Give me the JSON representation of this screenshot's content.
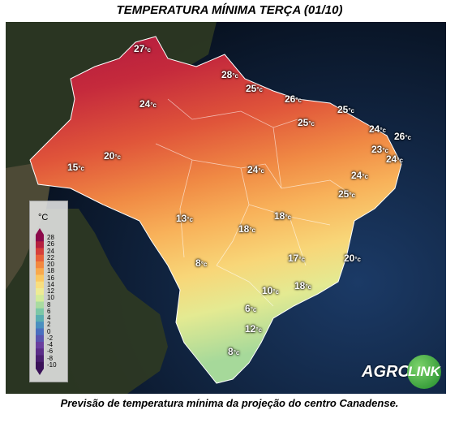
{
  "title": "TEMPERATURA MÍNIMA TERÇA (01/10)",
  "caption": "Previsão de temperatura mínima da projeção do centro Canadense.",
  "legend": {
    "unit": "°C",
    "ticks": [
      "28",
      "26",
      "24",
      "22",
      "20",
      "18",
      "16",
      "14",
      "12",
      "10",
      "8",
      "6",
      "4",
      "2",
      "0",
      "-2",
      "-4",
      "-6",
      "-8",
      "-10"
    ],
    "colors": [
      "#8b0a4a",
      "#b5213f",
      "#d6403a",
      "#e86239",
      "#f2883f",
      "#f8a94d",
      "#fac862",
      "#f8de7e",
      "#eeeb94",
      "#d2eb9a",
      "#a9dba0",
      "#7cc7a6",
      "#5aaeb2",
      "#4a8fbf",
      "#4a6fbf",
      "#5a55b0",
      "#6a3f9e",
      "#5b2d88",
      "#4a1f70",
      "#3a1258"
    ]
  },
  "labels": [
    {
      "value": "27",
      "unit": "°c"
    },
    {
      "value": "28",
      "unit": "°c"
    },
    {
      "value": "25",
      "unit": "°c"
    },
    {
      "value": "26",
      "unit": "°c"
    },
    {
      "value": "24",
      "unit": "°c"
    },
    {
      "value": "25",
      "unit": "°c"
    },
    {
      "value": "25",
      "unit": "°c"
    },
    {
      "value": "24",
      "unit": "°c"
    },
    {
      "value": "26",
      "unit": "°c"
    },
    {
      "value": "23",
      "unit": "°c"
    },
    {
      "value": "24",
      "unit": "°c"
    },
    {
      "value": "20",
      "unit": "°c"
    },
    {
      "value": "15",
      "unit": "°c"
    },
    {
      "value": "24",
      "unit": "°c"
    },
    {
      "value": "24",
      "unit": "°c"
    },
    {
      "value": "25",
      "unit": "°c"
    },
    {
      "value": "13",
      "unit": "°c"
    },
    {
      "value": "18",
      "unit": "°c"
    },
    {
      "value": "18",
      "unit": "°c"
    },
    {
      "value": "8",
      "unit": "°c"
    },
    {
      "value": "17",
      "unit": "°c"
    },
    {
      "value": "20",
      "unit": "°c"
    },
    {
      "value": "10",
      "unit": "°c"
    },
    {
      "value": "18",
      "unit": "°c"
    },
    {
      "value": "6",
      "unit": "°c"
    },
    {
      "value": "12",
      "unit": "°c"
    },
    {
      "value": "8",
      "unit": "°c"
    }
  ],
  "logo": {
    "left": "AGRO",
    "right": "LINK"
  }
}
